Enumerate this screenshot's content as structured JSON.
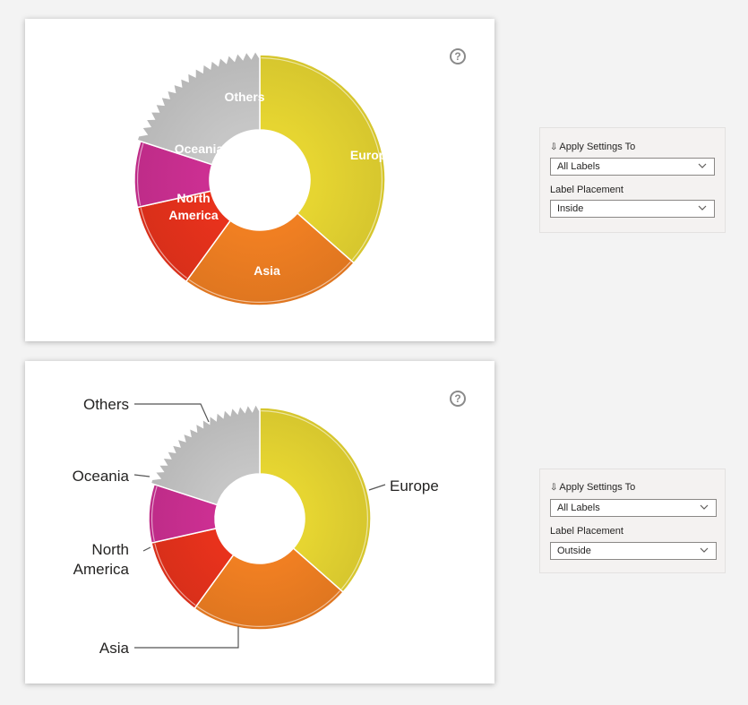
{
  "chart_data": [
    {
      "type": "pie",
      "variant": "donut",
      "categories": [
        "Europe",
        "Asia",
        "North America",
        "Oceania",
        "Others"
      ],
      "values": [
        36.5,
        23.5,
        11.5,
        8.5,
        20
      ],
      "colors": [
        "#e6d531",
        "#f07f22",
        "#e8321c",
        "#cc2f92",
        "#c6c6c6"
      ],
      "label_placement": "inside"
    },
    {
      "type": "pie",
      "variant": "donut",
      "categories": [
        "Europe",
        "Asia",
        "North America",
        "Oceania",
        "Others"
      ],
      "values": [
        36.5,
        23.5,
        11.5,
        8.5,
        20
      ],
      "colors": [
        "#e6d531",
        "#f07f22",
        "#e8321c",
        "#cc2f92",
        "#c6c6c6"
      ],
      "label_placement": "outside"
    }
  ],
  "labels_inside": [
    "Europe",
    "Asia",
    "North",
    "America",
    "Oceania",
    "Others"
  ],
  "labels_outside": [
    "Europe",
    "Asia",
    "North",
    "America",
    "Oceania",
    "Others"
  ],
  "panels": [
    {
      "apply_label": "Apply Settings To",
      "apply_value": "All Labels",
      "placement_label": "Label Placement",
      "placement_value": "Inside"
    },
    {
      "apply_label": "Apply Settings To",
      "apply_value": "All Labels",
      "placement_label": "Label Placement",
      "placement_value": "Outside"
    }
  ],
  "help_icon_glyph": "?",
  "hint_glyph": "⇩",
  "icons": {
    "help": "question-circle-icon",
    "dropdown": "chevron-down-icon",
    "apply": "download-arrow-icon"
  }
}
